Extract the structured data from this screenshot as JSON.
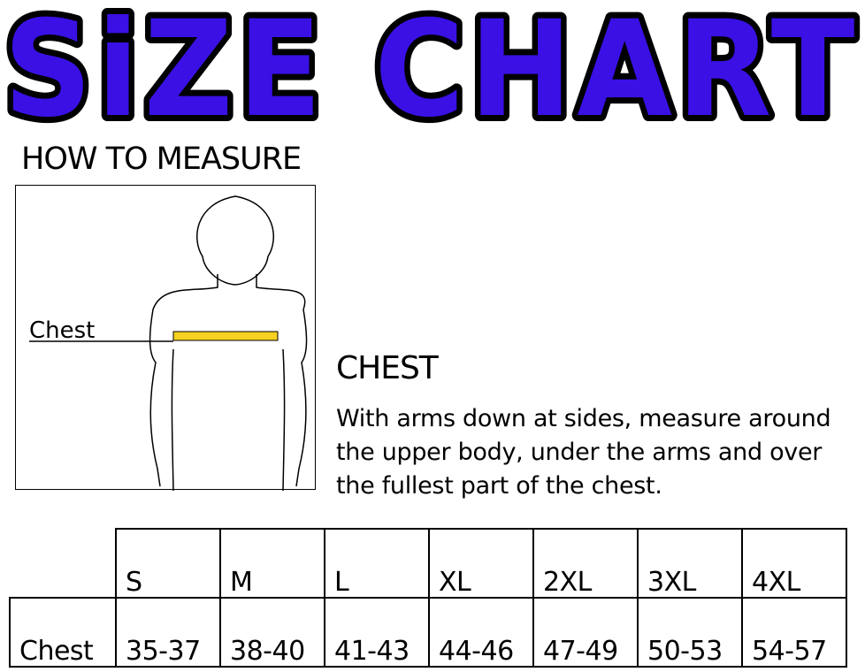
{
  "title": "SiZE CHART",
  "title_color": "#3a10e5",
  "how_to_measure": "HOW TO MEASURE",
  "figure": {
    "chest_label": "Chest",
    "tape_color": "#f5d020"
  },
  "chest_section": {
    "heading": "CHEST",
    "description": "With arms down at sides, measure around the upper body, under the arms and over the fullest part of the chest."
  },
  "table": {
    "sizes": [
      "S",
      "M",
      "L",
      "XL",
      "2XL",
      "3XL",
      "4XL"
    ],
    "row_label": "Chest",
    "values": [
      "35-37",
      "38-40",
      "41-43",
      "44-46",
      "47-49",
      "50-53",
      "54-57"
    ]
  }
}
